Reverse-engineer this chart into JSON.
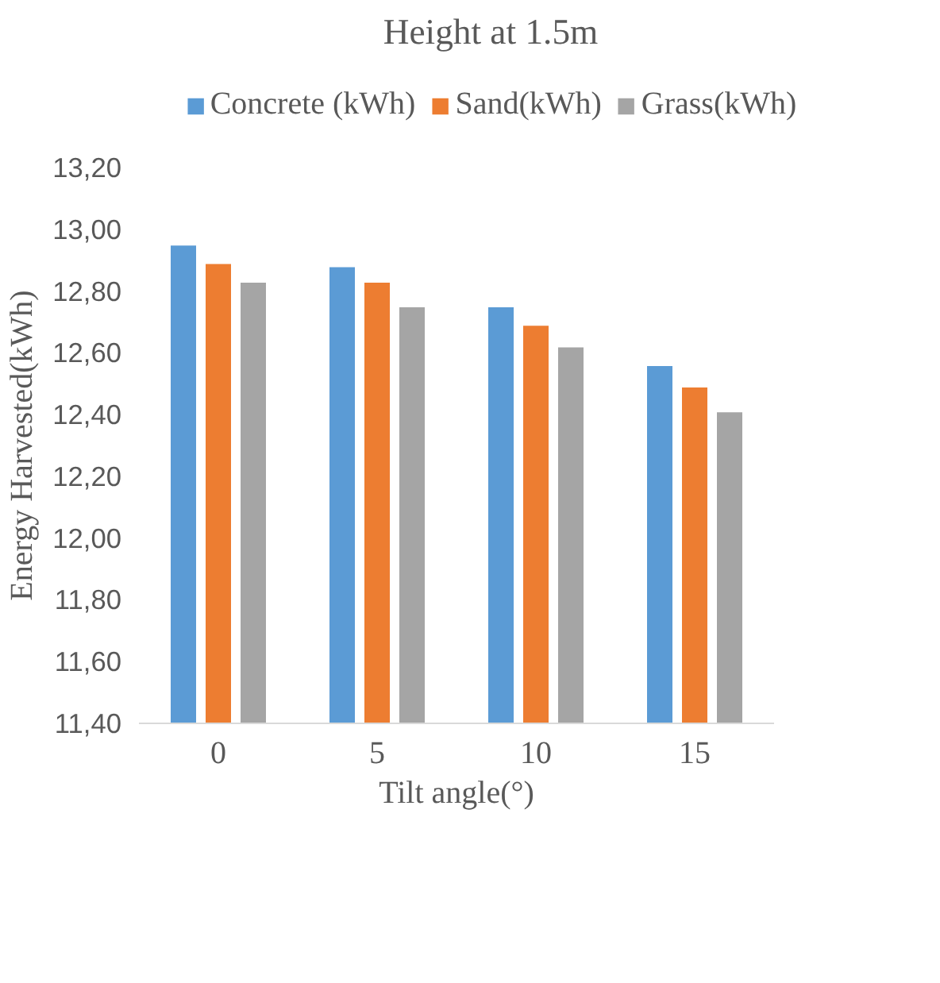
{
  "chart_data": {
    "type": "bar",
    "title": "Height at 1.5m",
    "xlabel": "Tilt angle(°)",
    "ylabel": "Energy Harvested(kWh)",
    "categories": [
      "0",
      "5",
      "10",
      "15"
    ],
    "series": [
      {
        "name": "Concrete (kWh)",
        "color": "#5b9bd5",
        "values": [
          12.95,
          12.88,
          12.75,
          12.56
        ]
      },
      {
        "name": "Sand(kWh)",
        "color": "#ed7d31",
        "values": [
          12.89,
          12.83,
          12.69,
          12.49
        ]
      },
      {
        "name": "Grass(kWh)",
        "color": "#a5a5a5",
        "values": [
          12.83,
          12.75,
          12.62,
          12.41
        ]
      }
    ],
    "ylim": [
      11.4,
      13.2
    ],
    "yticks": [
      {
        "value": 11.4,
        "label": "11,40"
      },
      {
        "value": 11.6,
        "label": "11,60"
      },
      {
        "value": 11.8,
        "label": "11,80"
      },
      {
        "value": 12.0,
        "label": "12,00"
      },
      {
        "value": 12.2,
        "label": "12,20"
      },
      {
        "value": 12.4,
        "label": "12,40"
      },
      {
        "value": 12.6,
        "label": "12,60"
      },
      {
        "value": 12.8,
        "label": "12,80"
      },
      {
        "value": 13.0,
        "label": "13,00"
      },
      {
        "value": 13.2,
        "label": "13,20"
      }
    ],
    "grid": false,
    "legend": "top"
  }
}
